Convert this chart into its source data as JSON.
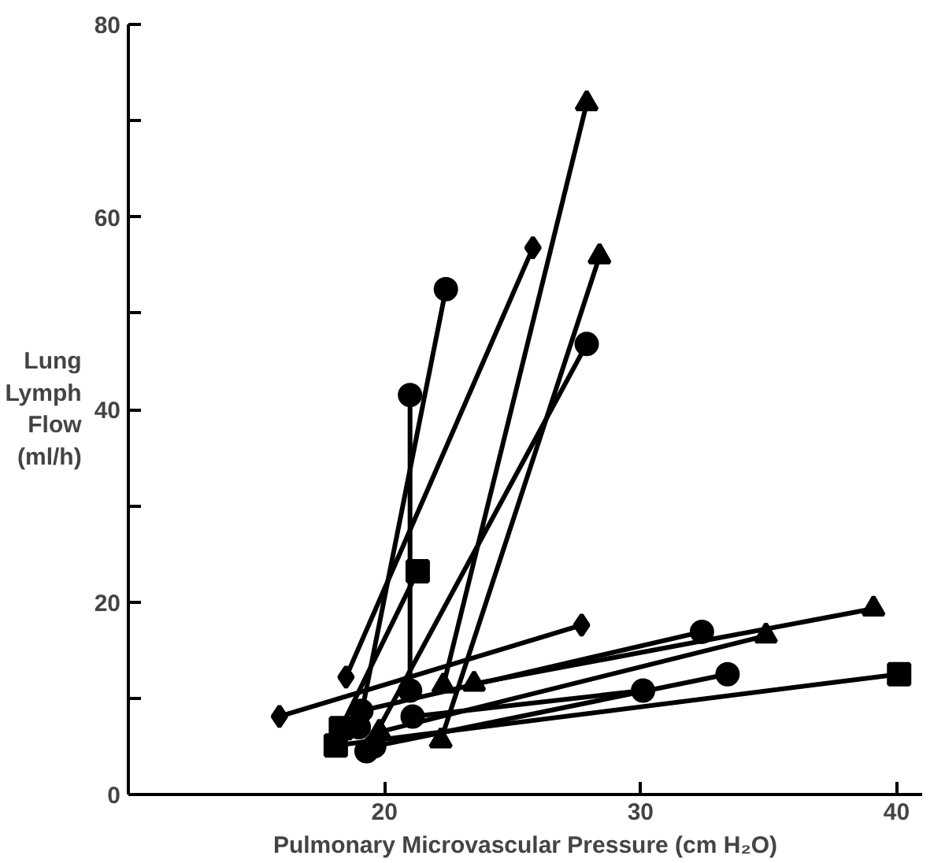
{
  "chart_data": {
    "type": "line",
    "xlabel": "Pulmonary Microvascular Pressure (cm H₂O)",
    "ylabel": "Lung\nLymph\nFlow\n(ml/h)",
    "xlim": [
      10,
      41
    ],
    "xticks": [
      20,
      30,
      40
    ],
    "ylim": [
      0,
      80
    ],
    "yticks": [
      0,
      {
        "value": 10,
        "label": null
      },
      20,
      {
        "value": 30,
        "label": null
      },
      40,
      {
        "value": 50,
        "label": null
      },
      60,
      {
        "value": 70,
        "label": null
      },
      80
    ],
    "grid": false,
    "line_style": "solid",
    "series": [
      {
        "color": "#000000",
        "marker": "triangle",
        "x": [
          22.3,
          27.9
        ],
        "values": [
          11.3,
          71.8
        ]
      },
      {
        "color": "#000000",
        "marker": "diamond",
        "x": [
          18.5,
          25.8
        ],
        "values": [
          12.2,
          56.8
        ]
      },
      {
        "color": "#000000",
        "marker": "circle",
        "x": [
          19.0,
          22.4
        ],
        "values": [
          7.0,
          52.5
        ]
      },
      {
        "color": "#000000",
        "marker": "circle",
        "x": [
          21.0,
          21.0
        ],
        "values": [
          10.8,
          41.5
        ]
      },
      {
        "color": "#000000",
        "marker": "square",
        "x": [
          18.3,
          21.3
        ],
        "values": [
          6.9,
          23.2
        ]
      },
      {
        "color": "#000000",
        "marker": "triangle",
        "x": [
          22.2,
          28.4
        ],
        "values": [
          5.6,
          55.9
        ]
      },
      {
        "color": "#000000",
        "marker": "circle",
        "x": [
          19.3,
          27.9
        ],
        "values": [
          4.5,
          46.8
        ]
      },
      {
        "color": "#000000",
        "marker": "diamond",
        "x": [
          15.9,
          27.7
        ],
        "values": [
          8.1,
          17.6
        ]
      },
      {
        "color": "#000000",
        "marker": "triangle",
        "x": [
          23.5,
          39.1
        ],
        "values": [
          11.5,
          19.3
        ]
      },
      {
        "color": "#000000",
        "marker": "circle",
        "x": [
          19.1,
          32.4
        ],
        "values": [
          8.7,
          16.9
        ]
      },
      {
        "color": "#000000",
        "marker": "triangle",
        "x": [
          19.8,
          34.9
        ],
        "values": [
          6.5,
          16.5
        ]
      },
      {
        "color": "#000000",
        "marker": "circle",
        "x": [
          21.1,
          30.1
        ],
        "values": [
          8.1,
          10.8
        ]
      },
      {
        "color": "#000000",
        "marker": "circle",
        "x": [
          19.6,
          33.4
        ],
        "values": [
          5.0,
          12.5
        ]
      },
      {
        "color": "#000000",
        "marker": "square",
        "x": [
          18.1,
          40.1
        ],
        "values": [
          5.1,
          12.5
        ]
      }
    ]
  }
}
